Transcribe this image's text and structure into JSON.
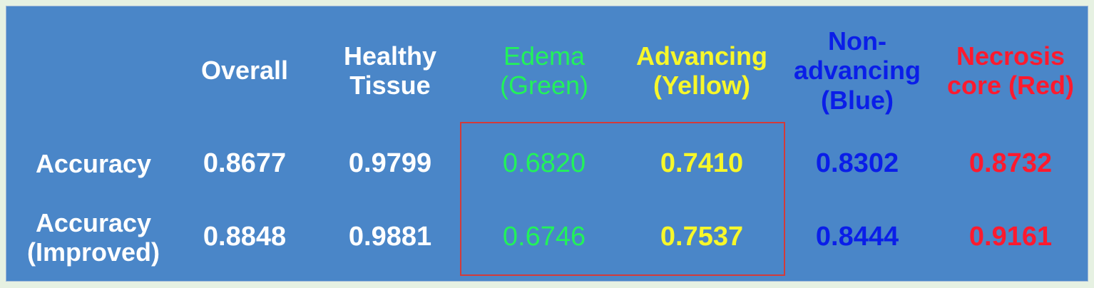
{
  "chart_data": {
    "type": "table",
    "columns": [
      {
        "label": "",
        "color": "#ffffff"
      },
      {
        "label": "Overall",
        "color": "#ffffff"
      },
      {
        "label": "Healthy\nTissue",
        "color": "#ffffff"
      },
      {
        "label": "Edema\n(Green)",
        "color": "#22f25a"
      },
      {
        "label": "Advancing\n(Yellow)",
        "color": "#f7f72a"
      },
      {
        "label": "Non-\nadvancing\n(Blue)",
        "color": "#0a1ee8"
      },
      {
        "label": "Necrosis\ncore (Red)",
        "color": "#ff1a2e"
      }
    ],
    "rows": [
      {
        "label": "Accuracy",
        "values": [
          "0.8677",
          "0.9799",
          "0.6820",
          "0.7410",
          "0.8302",
          "0.8732"
        ]
      },
      {
        "label": "Accuracy\n(Improved)",
        "values": [
          "0.8848",
          "0.9881",
          "0.6746",
          "0.7537",
          "0.8444",
          "0.9161"
        ]
      }
    ],
    "highlight": {
      "columns": [
        "Edema\n(Green)",
        "Advancing\n(Yellow)"
      ],
      "color": "#d33a3a"
    }
  }
}
